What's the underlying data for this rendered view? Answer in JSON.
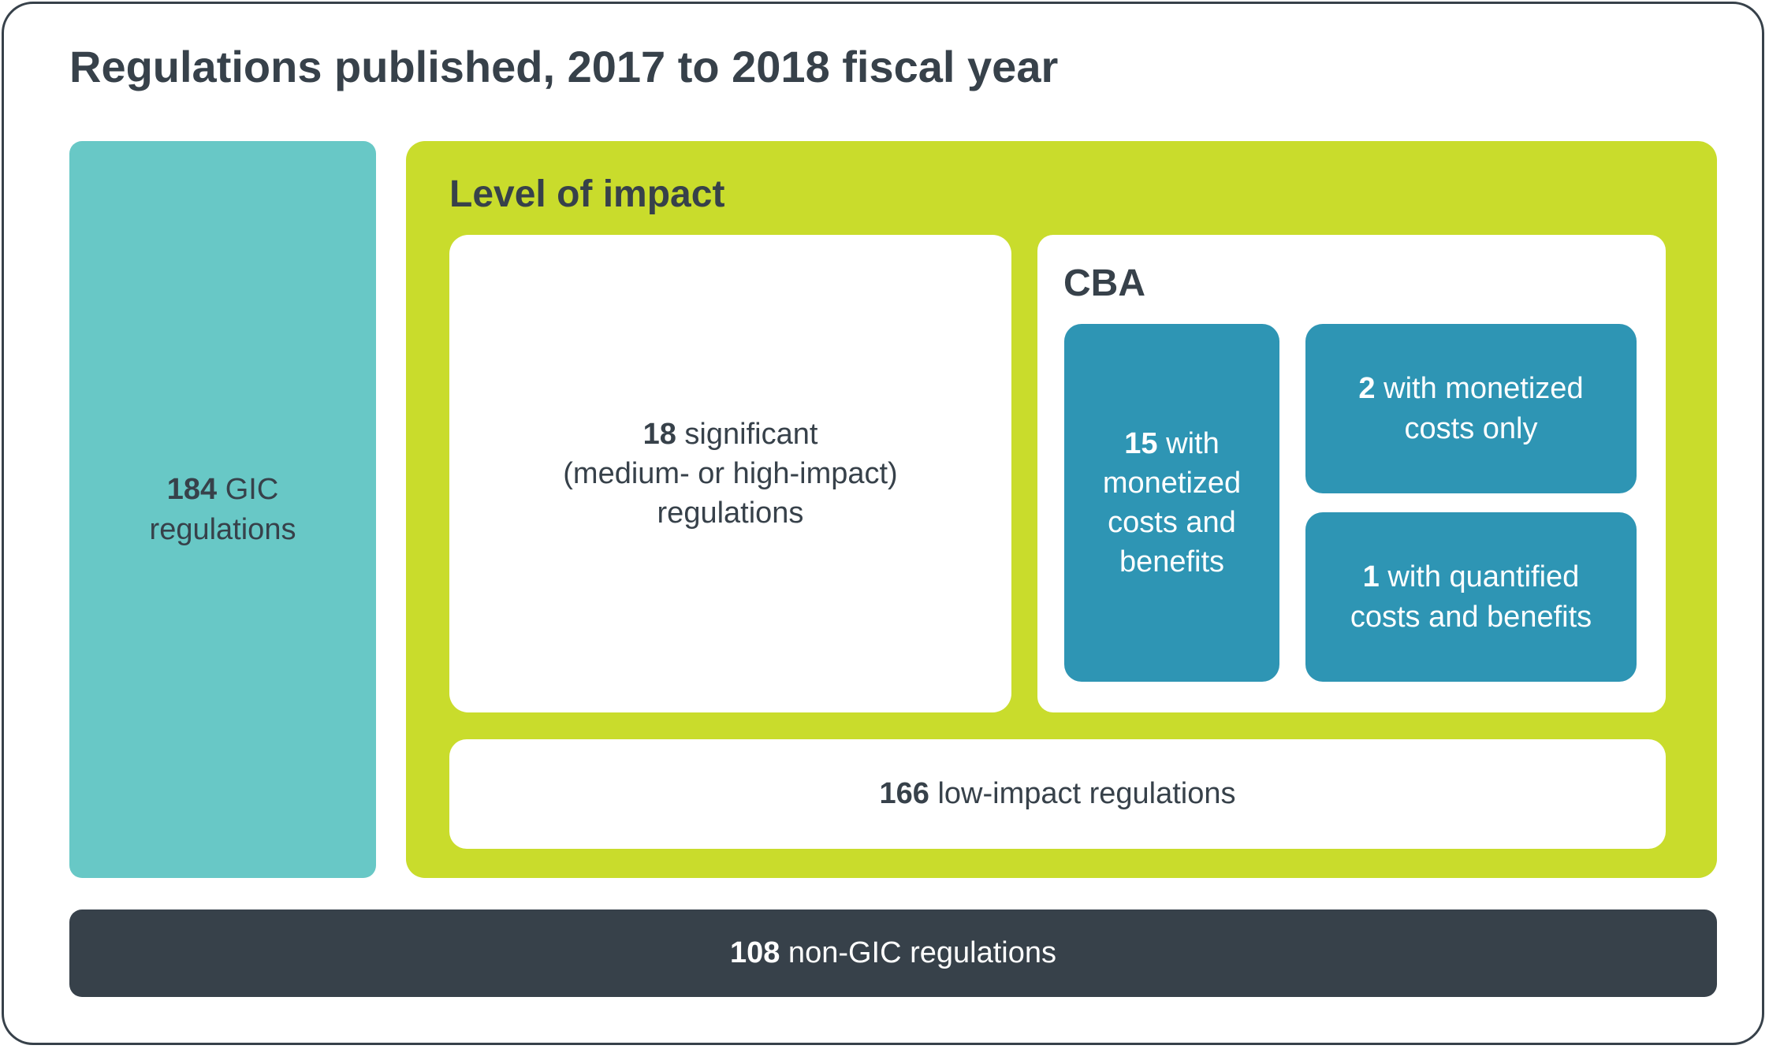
{
  "title": "Regulations published, 2017 to 2018 fiscal year",
  "colors": {
    "gic": "#68c8c6",
    "impact": "#c9dc2c",
    "tile": "#2e95b4",
    "nongic": "#37414a",
    "text_dark": "#37414a"
  },
  "gic": {
    "count": "184",
    "line1_rest": " GIC",
    "line2": "regulations"
  },
  "impact": {
    "title": "Level of impact",
    "significant": {
      "count": "18",
      "line1_rest": " significant",
      "line2": "(medium- or high-impact)",
      "line3": "regulations"
    },
    "cba": {
      "title": "CBA",
      "monetized_both": {
        "count": "15",
        "line1_rest": " with",
        "line2": "monetized",
        "line3": "costs and",
        "line4": "benefits"
      },
      "monetized_costs": {
        "count": "2",
        "line1_rest": " with monetized",
        "line2": "costs only"
      },
      "quantified": {
        "count": "1",
        "line1_rest": " with quantified",
        "line2": "costs and benefits"
      }
    },
    "low": {
      "count": "166",
      "rest": " low-impact regulations"
    }
  },
  "nongic": {
    "count": "108",
    "rest": " non-GIC regulations"
  }
}
